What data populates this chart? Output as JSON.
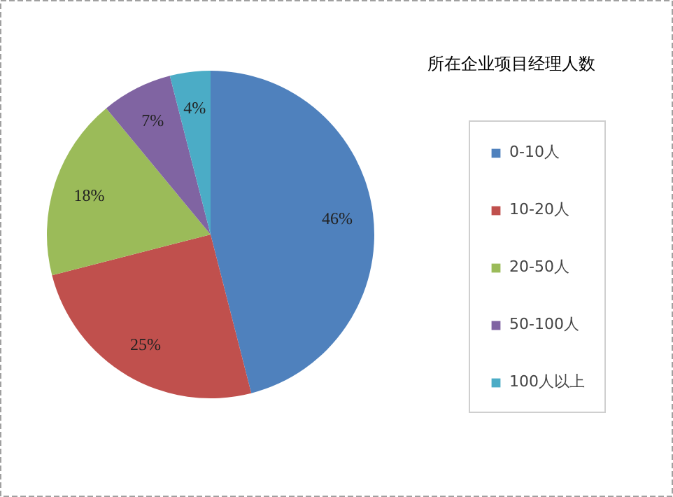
{
  "chart_data": {
    "type": "pie",
    "title": "所在企业项目经理人数",
    "categories": [
      "0-10人",
      "10-20人",
      "20-50人",
      "50-100人",
      "100人以上"
    ],
    "values": [
      46,
      25,
      18,
      7,
      4
    ],
    "value_labels": [
      "46%",
      "25%",
      "18%",
      "7%",
      "4%"
    ],
    "colors": [
      "#4f81bd",
      "#c0504d",
      "#9bbb59",
      "#8064a2",
      "#4bacc6"
    ],
    "legend": "right"
  }
}
